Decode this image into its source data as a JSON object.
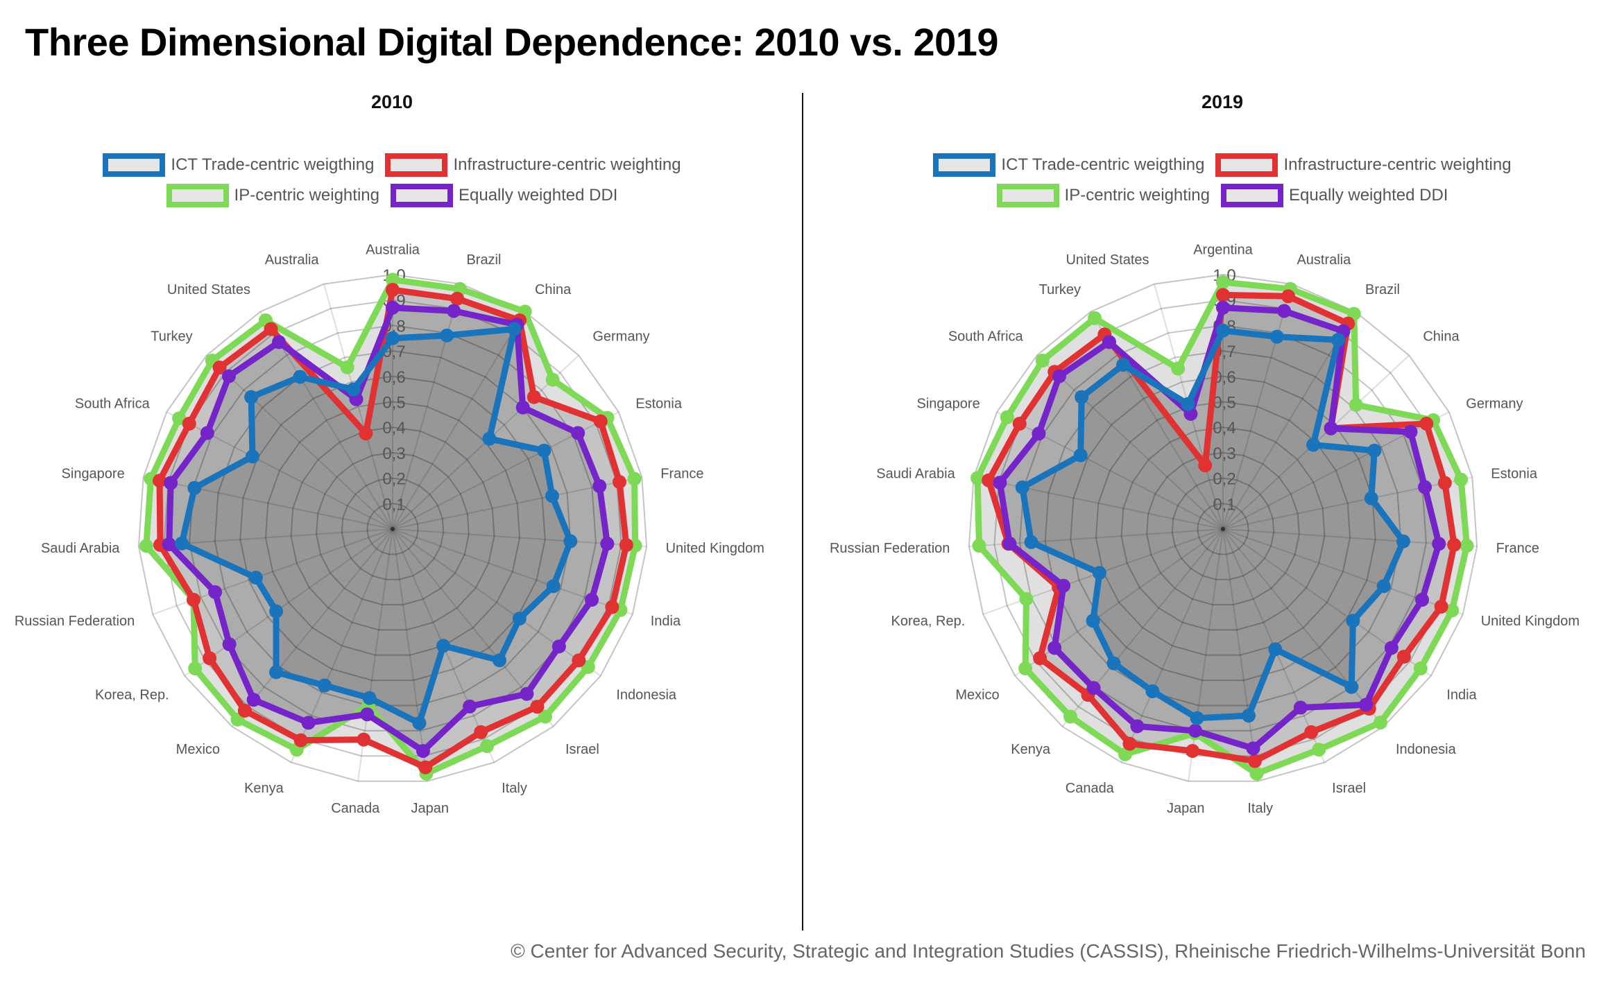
{
  "title": "Three Dimensional Digital Dependence: 2010 vs. 2019",
  "footer": "© Center for Advanced Security, Strategic and Integration Studies (CASSIS), Rheinische Friedrich-Wilhelms-Universität Bonn",
  "legend": [
    {
      "label": "ICT Trade-centric weigthing",
      "color": "#1a74bb"
    },
    {
      "label": "Infrastructure-centric weighting",
      "color": "#e03232"
    },
    {
      "label": "IP-centric weighting",
      "color": "#7ed957"
    },
    {
      "label": "Equally weighted DDI",
      "color": "#7424c8"
    }
  ],
  "chart_data": [
    {
      "type": "radar",
      "title": "2010",
      "range": [
        0,
        1
      ],
      "rticks": [
        "0,1",
        "0,2",
        "0,3",
        "0,4",
        "0,5",
        "0,6",
        "0,7",
        "0,8",
        "0,9",
        "1,0"
      ],
      "grid": true,
      "legend_position": "top",
      "categories": [
        "Australia",
        "Brazil",
        "China",
        "Germany",
        "Estonia",
        "France",
        "United Kingdom",
        "India",
        "Indonesia",
        "Israel",
        "Italy",
        "Japan",
        "Canada",
        "Kenya",
        "Mexico",
        "Korea, Rep.",
        "Russian Federation",
        "Saudi Arabia",
        "Singapore",
        "South Africa",
        "Turkey",
        "United States",
        "Australia"
      ],
      "series": [
        {
          "name": "IP-centric weighting",
          "color": "#7ed957",
          "values": [
            0.98,
            0.98,
            1.0,
            0.86,
            0.95,
            0.97,
            0.955,
            0.95,
            0.94,
            0.95,
            0.93,
            0.97,
            0.7,
            0.945,
            0.965,
            0.95,
            0.83,
            0.97,
            0.97,
            0.945,
            0.97,
            0.96,
            0.66
          ]
        },
        {
          "name": "Infrastructure-centric weighting",
          "color": "#e03232",
          "values": [
            0.94,
            0.94,
            0.96,
            0.76,
            0.92,
            0.91,
            0.92,
            0.915,
            0.895,
            0.9,
            0.87,
            0.945,
            0.835,
            0.905,
            0.92,
            0.88,
            0.83,
            0.915,
            0.935,
            0.9,
            0.93,
            0.92,
            0.39
          ]
        },
        {
          "name": "Equally weighted DDI",
          "color": "#7424c8",
          "values": [
            0.87,
            0.89,
            0.94,
            0.7,
            0.82,
            0.83,
            0.845,
            0.83,
            0.8,
            0.835,
            0.76,
            0.88,
            0.735,
            0.83,
            0.865,
            0.785,
            0.74,
            0.88,
            0.89,
            0.82,
            0.88,
            0.86,
            0.53
          ]
        },
        {
          "name": "ICT Trade-centric weigthing",
          "color": "#1a74bb",
          "values": [
            0.75,
            0.79,
            0.92,
            0.52,
            0.67,
            0.64,
            0.7,
            0.67,
            0.61,
            0.665,
            0.5,
            0.77,
            0.67,
            0.67,
            0.725,
            0.56,
            0.57,
            0.83,
            0.795,
            0.62,
            0.76,
            0.7,
            0.57
          ]
        }
      ]
    },
    {
      "type": "radar",
      "title": "2019",
      "range": [
        0,
        1
      ],
      "rticks": [
        "0,1",
        "0,2",
        "0,3",
        "0,4",
        "0,5",
        "0,6",
        "0,7",
        "0,8",
        "0,9",
        "1,0"
      ],
      "grid": true,
      "legend_position": "top",
      "categories": [
        "Argentina",
        "Australia",
        "Brazil",
        "China",
        "Germany",
        "Estonia",
        "France",
        "United Kingdom",
        "India",
        "Indonesia",
        "Israel",
        "Italy",
        "Japan",
        "Canada",
        "Kenya",
        "Mexico",
        "Korea, Rep.",
        "Russian Federation",
        "Saudi Arabia",
        "Singapore",
        "South Africa",
        "Turkey",
        "United States"
      ],
      "series": [
        {
          "name": "IP-centric weighting",
          "color": "#7ed957",
          "values": [
            0.97,
            0.98,
            0.99,
            0.715,
            0.93,
            0.955,
            0.96,
            0.955,
            0.95,
            0.98,
            0.945,
            0.97,
            0.81,
            0.965,
            0.95,
            0.95,
            0.82,
            0.96,
            0.985,
            0.955,
            0.97,
            0.97,
            0.655
          ]
        },
        {
          "name": "Infrastructure-centric weighting",
          "color": "#e03232",
          "values": [
            0.92,
            0.95,
            0.945,
            0.58,
            0.9,
            0.89,
            0.91,
            0.91,
            0.87,
            0.91,
            0.87,
            0.92,
            0.88,
            0.92,
            0.84,
            0.88,
            0.685,
            0.845,
            0.94,
            0.9,
            0.905,
            0.895,
            0.26
          ]
        },
        {
          "name": "Equally weighted DDI",
          "color": "#7424c8",
          "values": [
            0.87,
            0.89,
            0.91,
            0.58,
            0.83,
            0.81,
            0.85,
            0.83,
            0.81,
            0.89,
            0.765,
            0.87,
            0.8,
            0.845,
            0.805,
            0.81,
            0.665,
            0.84,
            0.895,
            0.815,
            0.88,
            0.86,
            0.47
          ]
        },
        {
          "name": "ICT Trade-centric weigthing",
          "color": "#1a74bb",
          "values": [
            0.78,
            0.785,
            0.87,
            0.485,
            0.67,
            0.595,
            0.71,
            0.67,
            0.625,
            0.8,
            0.515,
            0.74,
            0.75,
            0.695,
            0.68,
            0.625,
            0.515,
            0.755,
            0.805,
            0.63,
            0.76,
            0.755,
            0.51
          ]
        }
      ]
    }
  ]
}
